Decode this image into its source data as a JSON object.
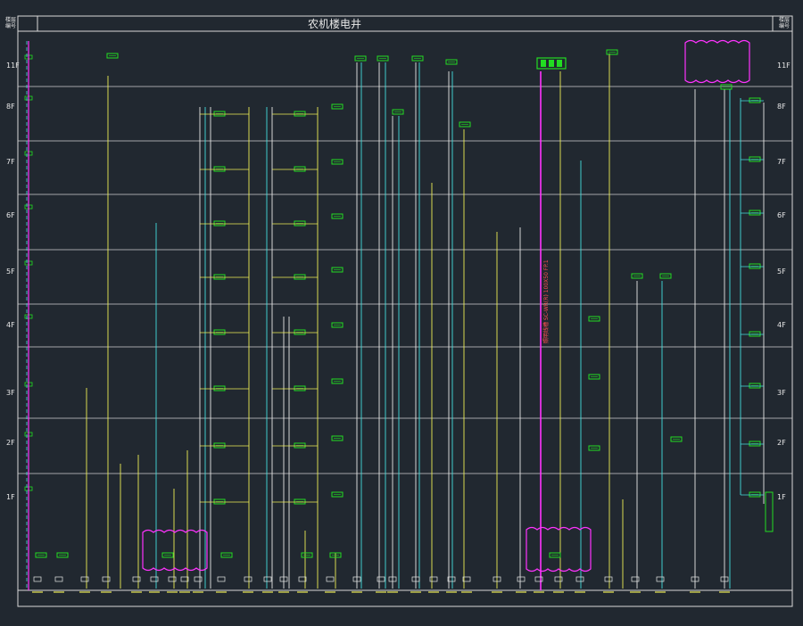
{
  "drawing": {
    "title": "农机楼电井",
    "corner_left": "楼层\n编号",
    "corner_right": "楼层\n编号",
    "floors": [
      "1F",
      "2F",
      "3F",
      "4F",
      "5F",
      "6F",
      "7F",
      "8F",
      "11F"
    ],
    "vertical_note": "照明线槽 SC-WR(R) 100X50 FP.1"
  },
  "colors": {
    "background": "#212830",
    "frame": "#d9d9d9",
    "green": "#22dd22",
    "yellow": "#eeee55",
    "cyan": "#44dddd",
    "magenta": "#ff33ff",
    "white": "#e8e8e8",
    "red": "#ff5050"
  }
}
